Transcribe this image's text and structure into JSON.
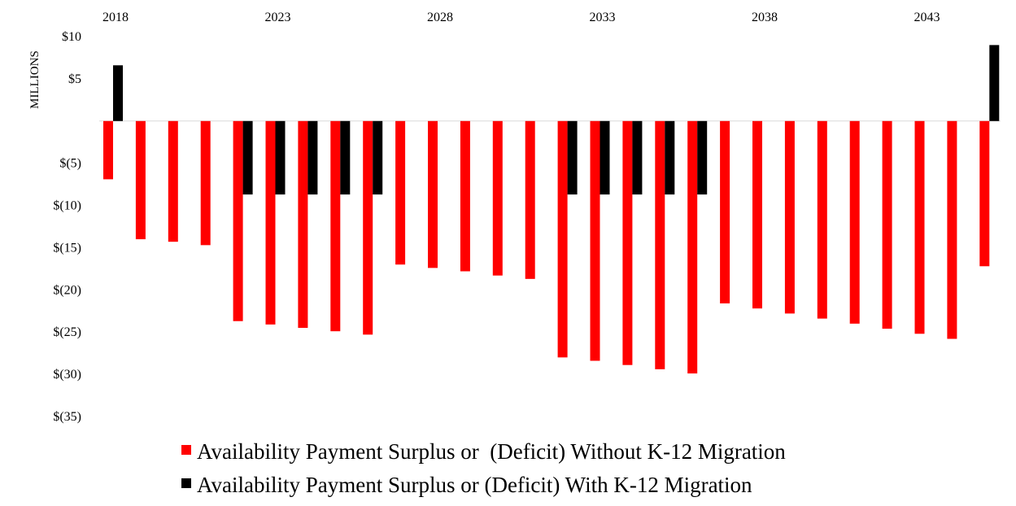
{
  "chart_data": {
    "type": "bar",
    "title": "",
    "xlabel": "",
    "ylabel": "MILLIONS",
    "ylim": [
      -35,
      10
    ],
    "yticks": [
      10,
      5,
      0,
      -5,
      -10,
      -15,
      -20,
      -25,
      -30,
      -35
    ],
    "ytick_labels": [
      "$10",
      "$5",
      "",
      "$(5)",
      "$(10)",
      "$(15)",
      "$(20)",
      "$(25)",
      "$(30)",
      "$(35)"
    ],
    "x_tick_labels": [
      {
        "year": 2018,
        "label": "2018"
      },
      {
        "year": 2023,
        "label": "2023"
      },
      {
        "year": 2028,
        "label": "2028"
      },
      {
        "year": 2033,
        "label": "2033"
      },
      {
        "year": 2038,
        "label": "2038"
      },
      {
        "year": 2043,
        "label": "2043"
      }
    ],
    "x_axis_position": "top",
    "grid": false,
    "legend_position": "bottom",
    "categories": [
      2018,
      2019,
      2020,
      2021,
      2022,
      2023,
      2024,
      2025,
      2026,
      2027,
      2028,
      2029,
      2030,
      2031,
      2032,
      2033,
      2034,
      2035,
      2036,
      2037,
      2038,
      2039,
      2040,
      2041,
      2042,
      2043,
      2044,
      2045
    ],
    "series": [
      {
        "name": "Availability Payment Surplus or  (Deficit) Without K-12 Migration",
        "color": "#ff0000",
        "values": [
          -6.9,
          -14.0,
          -14.3,
          -14.7,
          -23.7,
          -24.1,
          -24.5,
          -24.9,
          -25.3,
          -17.0,
          -17.4,
          -17.8,
          -18.3,
          -18.7,
          -28.0,
          -28.4,
          -28.9,
          -29.4,
          -29.9,
          -21.6,
          -22.2,
          -22.8,
          -23.4,
          -24.0,
          -24.6,
          -25.2,
          -25.8,
          -17.2
        ]
      },
      {
        "name": "Availability Payment Surplus or (Deficit) With K-12 Migration",
        "color": "#000000",
        "values": [
          6.6,
          0,
          0,
          0,
          -8.7,
          -8.7,
          -8.7,
          -8.7,
          -8.7,
          0,
          0,
          0,
          0,
          0,
          -8.7,
          -8.7,
          -8.7,
          -8.7,
          -8.7,
          0,
          0,
          0,
          0,
          0,
          0,
          0,
          0,
          9.0
        ]
      }
    ]
  }
}
